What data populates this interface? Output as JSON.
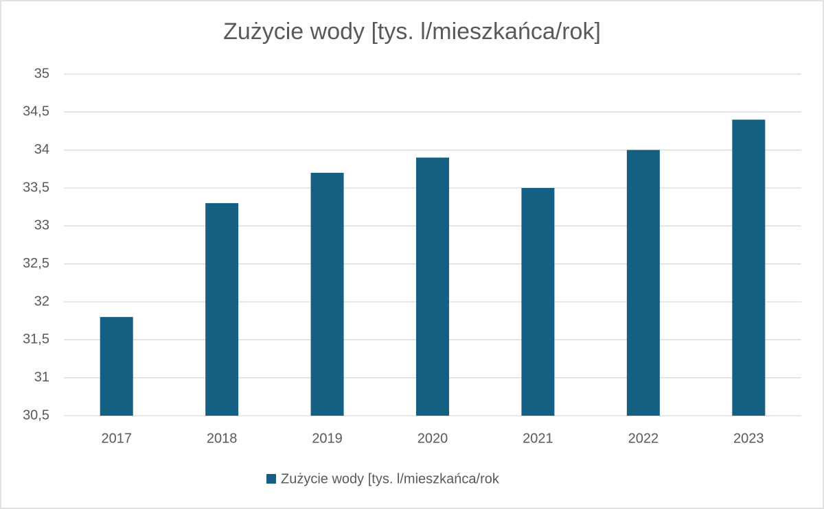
{
  "chart_data": {
    "type": "bar",
    "title": "Zużycie wody [tys. l/mieszkańca/rok]",
    "categories": [
      "2017",
      "2018",
      "2019",
      "2020",
      "2021",
      "2022",
      "2023"
    ],
    "series": [
      {
        "name": "Zużycie wody [tys. l/mieszkańca/rok",
        "color": "#156082",
        "values": [
          31.8,
          33.3,
          33.7,
          33.9,
          33.5,
          34.0,
          34.4
        ]
      }
    ],
    "ylim": [
      30.5,
      35
    ],
    "yticks": [
      {
        "value": 30.5,
        "label": "30,5"
      },
      31,
      {
        "value": 31.5,
        "label": "31,5"
      },
      32,
      {
        "value": 32.5,
        "label": "32,5"
      },
      33,
      {
        "value": 33.5,
        "label": "33,5"
      },
      34,
      {
        "value": 34.5,
        "label": "34,5"
      },
      35
    ],
    "grid": true,
    "legend": "bottom"
  }
}
